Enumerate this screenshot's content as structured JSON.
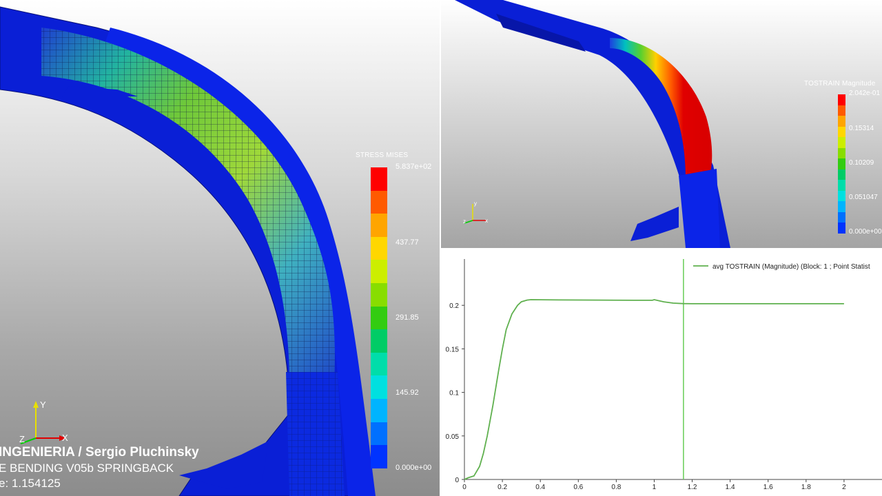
{
  "left_view": {
    "legend": {
      "title": "STRESS MISES",
      "ticks": [
        "5.837e+02",
        "437.77",
        "291.85",
        "145.92",
        "0.000e+00"
      ],
      "colors": [
        "#ff0000",
        "#ff5a00",
        "#ffa500",
        "#ffd700",
        "#ccee00",
        "#88dd00",
        "#33cc11",
        "#00cc66",
        "#00ddaa",
        "#00e0e0",
        "#00b4ff",
        "#0070ff",
        "#0033ff"
      ]
    },
    "axes": {
      "x": "X",
      "y": "Y",
      "z": "Z"
    },
    "overlay": {
      "credit": "INGENIERIA / Sergio Pluchinsky",
      "simulation": "E BENDING V05b SPRINGBACK",
      "time": "e: 1.154125"
    }
  },
  "top_right_view": {
    "legend": {
      "title": "TOSTRAIN Magnitude",
      "ticks": [
        "2.042e-01",
        "0.15314",
        "0.10209",
        "0.051047",
        "0.000e+00"
      ],
      "colors": [
        "#ff0000",
        "#ff5a00",
        "#ffa500",
        "#ffd700",
        "#ccee00",
        "#88dd00",
        "#33cc11",
        "#00cc66",
        "#00ddaa",
        "#00e0e0",
        "#00b4ff",
        "#0070ff",
        "#0033ff"
      ]
    },
    "axes": {
      "x": "x",
      "y": "y",
      "z": "z"
    }
  },
  "colors": {
    "mesh_blue": "#0a1fd6",
    "plot_line": "#5fb04e",
    "time_marker": "#66cc55"
  },
  "chart_data": {
    "type": "line",
    "title": "",
    "xlabel": "",
    "ylabel": "",
    "xlim": [
      0,
      2.2
    ],
    "ylim": [
      0,
      0.25
    ],
    "x_ticks": [
      "0",
      "0.2",
      "0.4",
      "0.6",
      "0.8",
      "1",
      "1.2",
      "1.4",
      "1.6",
      "1.8",
      "2"
    ],
    "y_ticks": [
      "0",
      "0.05",
      "0.1",
      "0.15",
      "0.2"
    ],
    "grid": false,
    "legend_position": "top-right",
    "time_marker_x": 1.154,
    "series": [
      {
        "name": "avg TOSTRAIN (Magnitude) (Block: 1 ; Point Statist",
        "x": [
          0,
          0.02,
          0.05,
          0.08,
          0.1,
          0.12,
          0.15,
          0.18,
          0.2,
          0.22,
          0.25,
          0.28,
          0.3,
          0.33,
          0.35,
          0.5,
          0.7,
          0.9,
          0.99,
          1.0,
          1.05,
          1.1,
          1.15,
          1.2,
          1.4,
          1.6,
          1.8,
          2.0
        ],
        "values": [
          0,
          0.002,
          0.004,
          0.015,
          0.03,
          0.05,
          0.085,
          0.125,
          0.15,
          0.172,
          0.19,
          0.2,
          0.204,
          0.206,
          0.2065,
          0.2062,
          0.206,
          0.2058,
          0.2058,
          0.2065,
          0.204,
          0.2025,
          0.202,
          0.2018,
          0.2018,
          0.2018,
          0.2018,
          0.2018
        ]
      }
    ]
  }
}
